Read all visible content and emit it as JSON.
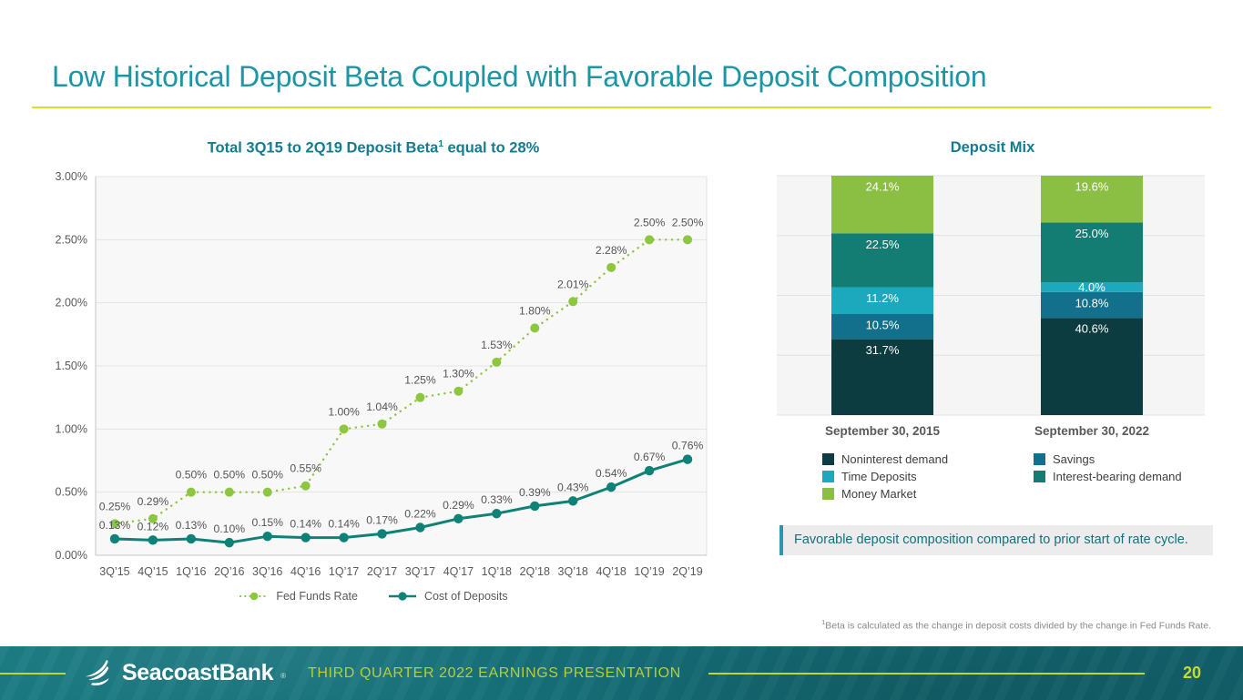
{
  "slide": {
    "title": "Low Historical Deposit Beta Coupled with Favorable Deposit Composition",
    "page_number": "20"
  },
  "footer": {
    "brand": "SeacoastBank",
    "brand_mark": "®",
    "tagline": "THIRD QUARTER 2022 EARNINGS PRESENTATION"
  },
  "left_panel": {
    "title_pre": "Total 3Q15 to 2Q19 Deposit Beta",
    "title_sup": "1",
    "title_post": " equal to 28%"
  },
  "right_panel": {
    "title": "Deposit Mix",
    "callout": "Favorable deposit composition compared to prior start of rate cycle.",
    "footnote_sup": "1",
    "footnote": "Beta is calculated as the change in deposit costs divided by the change in Fed Funds Rate."
  },
  "colors": {
    "heading_teal": "#1C95A5",
    "chart_title_teal": "#147C90",
    "underline_yellow": "#D9DE26",
    "fed_funds_green": "#8DC63F",
    "cost_of_deposits_teal": "#0E8276",
    "footer_bg_teal": "#156E77",
    "footer_accent_green": "#BFD730",
    "noninterest_demand": "#0D3C40",
    "savings": "#13708C",
    "time_deposits": "#1CA9BD",
    "interest_bearing_demand": "#147D73",
    "money_market": "#8ABF44"
  },
  "chart_data": [
    {
      "type": "line",
      "title": "Total 3Q15 to 2Q19 Deposit Beta¹ equal to 28%",
      "x": [
        "3Q’15",
        "4Q’15",
        "1Q’16",
        "2Q’16",
        "3Q’16",
        "4Q’16",
        "1Q’17",
        "2Q’17",
        "3Q’17",
        "4Q’17",
        "1Q’18",
        "2Q’18",
        "3Q’18",
        "4Q’18",
        "1Q’19",
        "2Q’19"
      ],
      "series": [
        {
          "name": "Fed Funds Rate",
          "style": "dotted",
          "color": "#8DC63F",
          "values": [
            0.25,
            0.29,
            0.5,
            0.5,
            0.5,
            0.55,
            1.0,
            1.04,
            1.25,
            1.3,
            1.53,
            1.8,
            2.01,
            2.28,
            2.5,
            2.5
          ]
        },
        {
          "name": "Cost of Deposits",
          "style": "solid",
          "color": "#0E8276",
          "values": [
            0.13,
            0.12,
            0.13,
            0.1,
            0.15,
            0.14,
            0.14,
            0.17,
            0.22,
            0.29,
            0.33,
            0.39,
            0.43,
            0.54,
            0.67,
            0.76
          ]
        }
      ],
      "ylim": [
        0,
        3.0
      ],
      "yticks": [
        "0.00%",
        "0.50%",
        "1.00%",
        "1.50%",
        "2.00%",
        "2.50%",
        "3.00%"
      ],
      "label_format": "percent2",
      "grid": true,
      "legend_position": "bottom"
    },
    {
      "type": "stacked-bar",
      "title": "Deposit Mix",
      "categories": [
        "September 30, 2015",
        "September 30, 2022"
      ],
      "series": [
        {
          "name": "Noninterest demand",
          "color": "#0D3C40",
          "values": [
            31.7,
            40.6
          ]
        },
        {
          "name": "Savings",
          "color": "#13708C",
          "values": [
            10.5,
            10.8
          ]
        },
        {
          "name": "Time Deposits",
          "color": "#1CA9BD",
          "values": [
            11.2,
            4.0
          ]
        },
        {
          "name": "Interest-bearing demand",
          "color": "#147D73",
          "values": [
            22.5,
            25.0
          ]
        },
        {
          "name": "Money Market",
          "color": "#8ABF44",
          "values": [
            24.1,
            19.6
          ]
        }
      ],
      "ylim": [
        0,
        100
      ],
      "gridline_step_pct": 25,
      "label_format": "percent1",
      "legend_columns": [
        [
          "Noninterest demand",
          "Time Deposits",
          "Money Market"
        ],
        [
          "Savings",
          "Interest-bearing demand"
        ]
      ],
      "legend_position": "bottom"
    }
  ]
}
